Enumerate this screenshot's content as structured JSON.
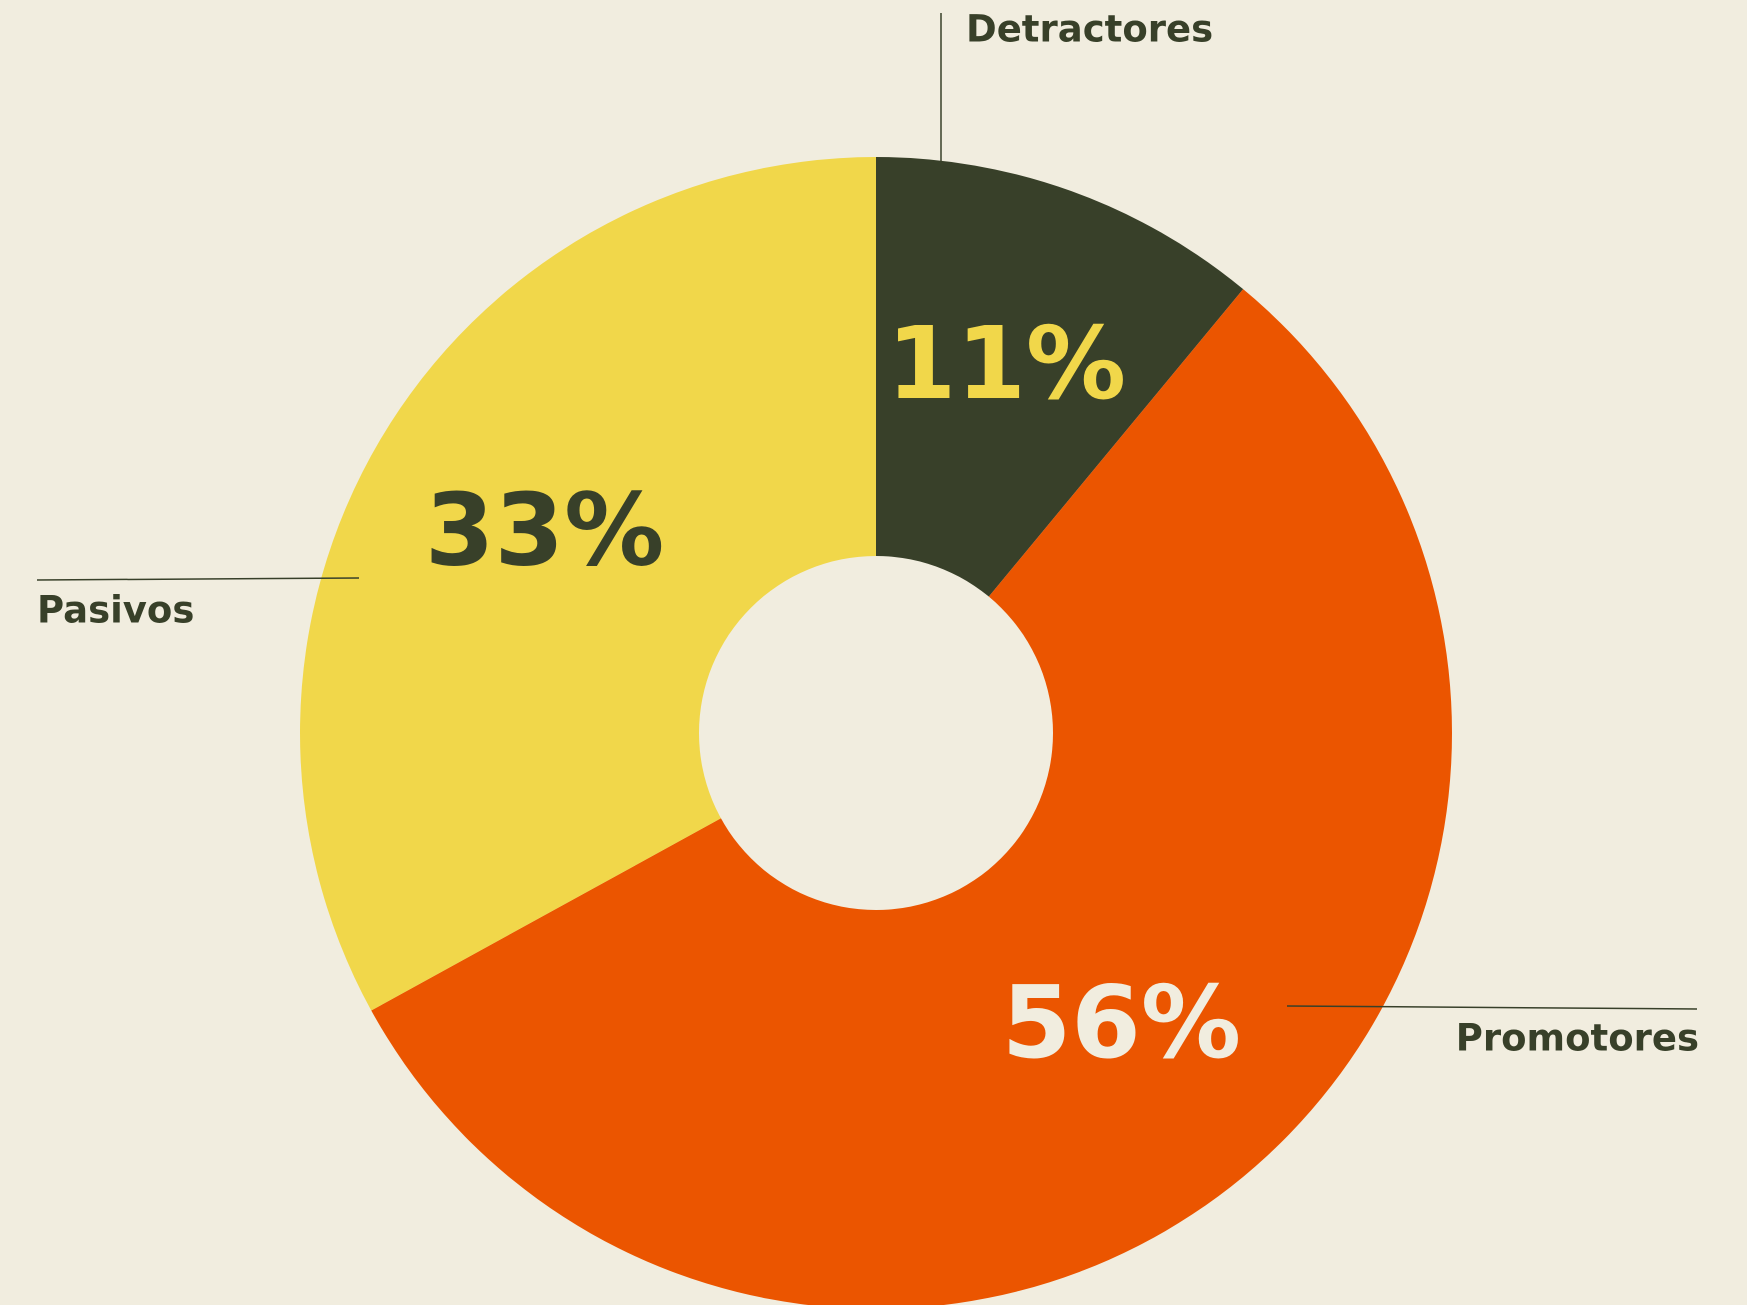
{
  "chart_data": {
    "type": "pie",
    "categories": [
      "Detractores",
      "Promotores",
      "Pasivos"
    ],
    "values": [
      11,
      56,
      33
    ],
    "value_labels": [
      "11%",
      "56%",
      "33%"
    ],
    "colors": [
      "#384029",
      "#eb5500",
      "#f1d74a"
    ],
    "label_colors": [
      "#f1d74a",
      "#f1eddf",
      "#384029"
    ],
    "donut": true
  }
}
